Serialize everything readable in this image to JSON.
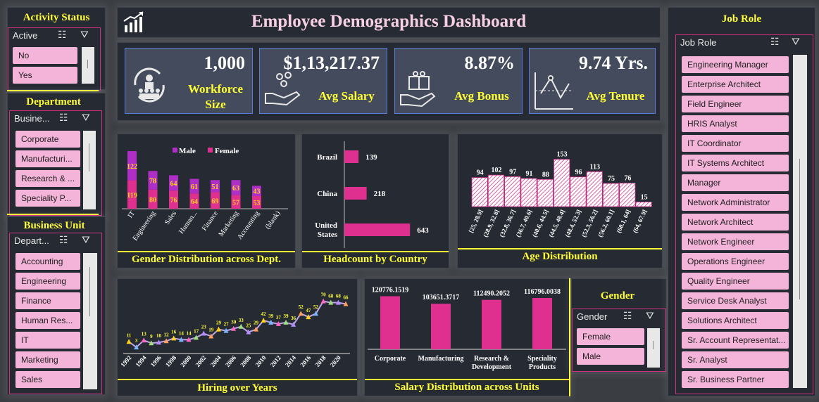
{
  "title": "Employee Demographics Dashboard",
  "activity": {
    "title": "Activity Status",
    "header": "Active",
    "items": [
      "No",
      "Yes"
    ]
  },
  "department": {
    "title": "Department",
    "header": "Busine...",
    "items": [
      "Corporate",
      "Manufacturi...",
      "Research & ...",
      "Speciality P..."
    ]
  },
  "business_unit": {
    "title": "Business Unit",
    "header": "Depart...",
    "items": [
      "Accounting",
      "Engineering",
      "Finance",
      "Human Res...",
      "IT",
      "Marketing",
      "Sales"
    ]
  },
  "gender": {
    "title": "Gender",
    "header": "Gender",
    "items": [
      "Female",
      "Male"
    ]
  },
  "job_role": {
    "title": "Job Role",
    "header": "Job Role",
    "items": [
      "Engineering Manager",
      "Enterprise Architect",
      "Field Engineer",
      "HRIS Analyst",
      "IT Coordinator",
      "IT Systems Architect",
      "Manager",
      "Network Administrator",
      "Network Architect",
      "Network Engineer",
      "Operations Engineer",
      "Quality Engineer",
      "Service Desk Analyst",
      "Solutions Architect",
      "Sr. Account Representat...",
      "Sr. Analyst",
      "Sr. Business Partner"
    ]
  },
  "kpis": {
    "workforce": {
      "value": "1,000",
      "label1": "Workforce",
      "label2": "Size"
    },
    "salary": {
      "value": "$1,13,217.37",
      "label": "Avg Salary"
    },
    "bonus": {
      "value": "8.87%",
      "label": "Avg Bonus"
    },
    "tenure": {
      "value": "9.74 Yrs.",
      "label": "Avg Tenure"
    }
  },
  "chart_titles": {
    "gender": "Gender Distribution across Dept.",
    "country": "Headcount by Country",
    "age": "Age Distribution",
    "hiring": "Hiring over Years",
    "salary": "Salary Distribution across Units"
  },
  "colors": {
    "male": "#b02ec8",
    "female": "#e0308f",
    "bar": "#e0308f",
    "accent": "#ffff33"
  },
  "chart_data": [
    {
      "type": "bar",
      "id": "gender",
      "stacked": true,
      "categories": [
        "IT",
        "Engineering",
        "Sales",
        "Human...",
        "Finance",
        "Marketing",
        "Accounting",
        "(blank)"
      ],
      "series": [
        {
          "name": "Male",
          "values": [
            122,
            78,
            64,
            61,
            51,
            63,
            43,
            null
          ]
        },
        {
          "name": "Female",
          "values": [
            119,
            80,
            76,
            64,
            69,
            57,
            53,
            null
          ]
        }
      ],
      "legend": "top"
    },
    {
      "type": "bar",
      "id": "country",
      "orientation": "horizontal",
      "categories": [
        "Brazil",
        "China",
        "United States"
      ],
      "values": [
        139,
        218,
        643
      ]
    },
    {
      "type": "bar",
      "id": "age",
      "categories": [
        "[25, 28.9]",
        "(28.9, 32.8]",
        "(32.8, 36.7]",
        "(36.7, 40.6]",
        "(40.6, 44.5]",
        "(44.5, 48.4]",
        "(48.4, 52.3]",
        "(52.3, 56.2]",
        "(56.2, 60.1]",
        "(60.1, 64]",
        "(64, 67.9]"
      ],
      "values": [
        94,
        102,
        97,
        91,
        88,
        153,
        96,
        113,
        75,
        76,
        15
      ]
    },
    {
      "type": "line",
      "id": "hiring",
      "x": [
        1992,
        1993,
        1994,
        1995,
        1996,
        1997,
        1998,
        1999,
        2000,
        2001,
        2002,
        2003,
        2004,
        2005,
        2006,
        2007,
        2008,
        2009,
        2010,
        2011,
        2012,
        2013,
        2014,
        2015,
        2016,
        2017,
        2018,
        2019,
        2020,
        2021
      ],
      "y": [
        11,
        3,
        13,
        9,
        10,
        12,
        16,
        14,
        14,
        17,
        23,
        19,
        29,
        27,
        30,
        33,
        25,
        29,
        42,
        39,
        37,
        39,
        36,
        52,
        47,
        52,
        70,
        68,
        68,
        66
      ],
      "ytop": 86,
      "xticks": [
        1992,
        1994,
        1996,
        1998,
        2000,
        2002,
        2004,
        2006,
        2008,
        2010,
        2012,
        2014,
        2016,
        2018,
        2020
      ]
    },
    {
      "type": "bar",
      "id": "salary",
      "categories": [
        "Corporate",
        "Manufacturing",
        "Research & Development",
        "Speciality Products"
      ],
      "values": [
        120776.1519,
        103651.3717,
        112490.2052,
        116796.0038
      ],
      "labels": [
        "120776.1519",
        "103651.3717",
        "112490.2052",
        "116796.0038"
      ]
    }
  ]
}
